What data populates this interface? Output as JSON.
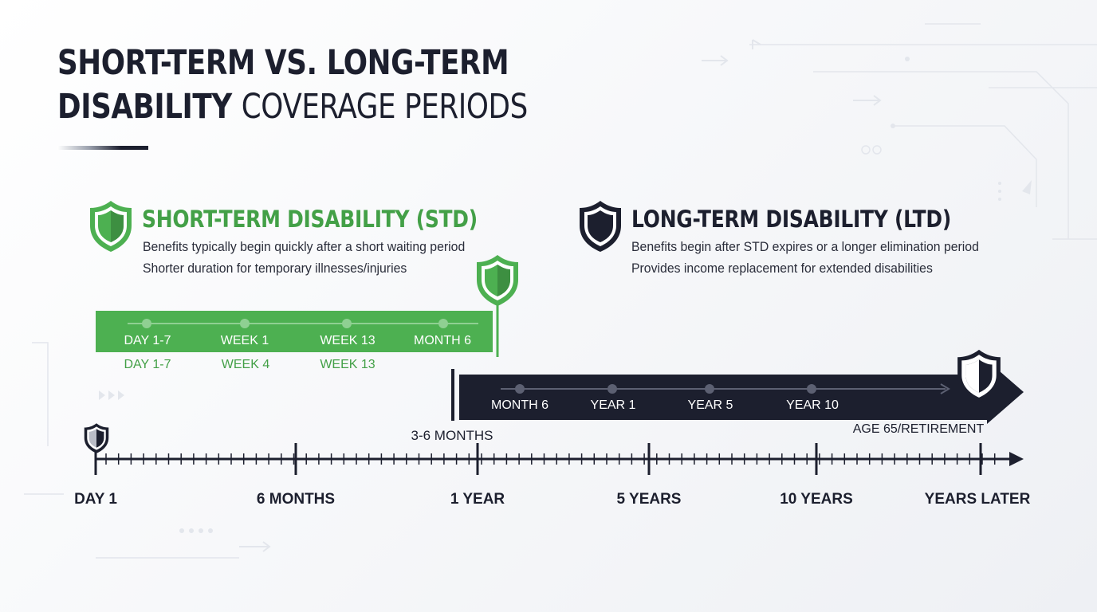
{
  "title": {
    "bold_part": "SHORT-TERM VS. LONG-TERM",
    "bold_part_2": "DISABILITY",
    "light_part": "COVERAGE PERIODS"
  },
  "colors": {
    "std_green": "#4db051",
    "std_green_text": "#43a047",
    "ltd_navy": "#1c1f2e",
    "background": "#f4f5f8"
  },
  "std": {
    "heading": "SHORT-TERM DISABILITY (STD)",
    "lines": [
      "Benefits typically begin quickly after a short waiting period",
      "Shorter duration for temporary illnesses/injuries"
    ],
    "icon": "shield-icon",
    "bar_labels": [
      "DAY 1-7",
      "WEEK 1",
      "WEEK 13",
      "MONTH 6"
    ],
    "below_labels": [
      "DAY 1-7",
      "WEEK 4",
      "WEEK 13"
    ]
  },
  "ltd": {
    "heading": "LONG-TERM DISABILITY (LTD)",
    "lines": [
      "Benefits begin after STD expires or a longer elimination period",
      "Provides income replacement for extended disabilities"
    ],
    "icon": "shield-icon",
    "bar_labels": [
      "MONTH 6",
      "YEAR 1",
      "YEAR 5",
      "YEAR 10"
    ],
    "end_label": "AGE 65/RETIREMENT"
  },
  "transition_label": "3-6 MONTHS",
  "timeline": {
    "labels": [
      "DAY 1",
      "6 MONTHS",
      "1 YEAR",
      "5 YEARS",
      "10 YEARS",
      "YEARS LATER"
    ]
  }
}
